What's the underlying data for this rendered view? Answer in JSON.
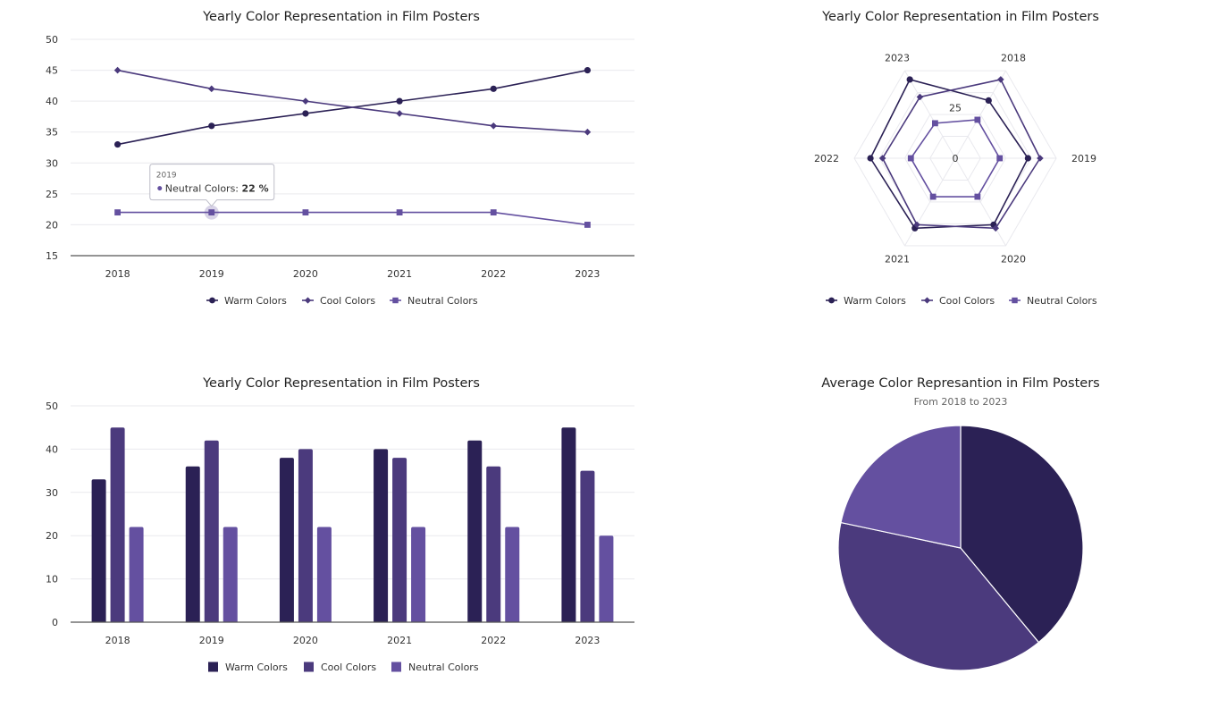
{
  "colors": {
    "warm": "#2b2155",
    "cool": "#4b3a7d",
    "neutral": "#6450a0",
    "grid": "#e9e9ee",
    "axis": "#555555",
    "text": "#222222",
    "tick": "#333333",
    "subtitle": "#666666"
  },
  "chart_data": [
    {
      "type": "line",
      "title": "Yearly Color Representation in Film Posters",
      "categories": [
        "2018",
        "2019",
        "2020",
        "2021",
        "2022",
        "2023"
      ],
      "ylim": [
        15,
        50
      ],
      "yticks": [
        "15",
        "20",
        "25",
        "30",
        "35",
        "40",
        "45",
        "50"
      ],
      "grid": true,
      "legend": "bottom",
      "series": [
        {
          "name": "Warm Colors",
          "values": [
            33,
            36,
            38,
            40,
            42,
            45
          ],
          "marker": "circle"
        },
        {
          "name": "Cool Colors",
          "values": [
            45,
            42,
            40,
            38,
            36,
            35
          ],
          "marker": "diamond"
        },
        {
          "name": "Neutral Colors",
          "values": [
            22,
            22,
            22,
            22,
            22,
            20
          ],
          "marker": "square"
        }
      ],
      "tooltip": {
        "category": "2019",
        "series": "Neutral Colors",
        "label": "Neutral Colors: ",
        "value": "22 %"
      }
    },
    {
      "type": "radar",
      "title": "Yearly Color Representation in Film Posters",
      "categories": [
        "2018",
        "2019",
        "2020",
        "2021",
        "2022",
        "2023"
      ],
      "rticks": [
        "0",
        "25"
      ],
      "rmax": 50,
      "legend": "bottom",
      "series": [
        {
          "name": "Warm Colors",
          "values": [
            33,
            36,
            38,
            40,
            42,
            45
          ],
          "marker": "circle"
        },
        {
          "name": "Cool Colors",
          "values": [
            45,
            42,
            40,
            38,
            36,
            35
          ],
          "marker": "diamond"
        },
        {
          "name": "Neutral Colors",
          "values": [
            22,
            22,
            22,
            22,
            22,
            20
          ],
          "marker": "square"
        }
      ]
    },
    {
      "type": "bar",
      "title": "Yearly Color Representation in Film Posters",
      "categories": [
        "2018",
        "2019",
        "2020",
        "2021",
        "2022",
        "2023"
      ],
      "ylim": [
        0,
        50
      ],
      "yticks": [
        "0",
        "10",
        "20",
        "30",
        "40",
        "50"
      ],
      "grid": true,
      "legend": "bottom",
      "series": [
        {
          "name": "Warm Colors",
          "values": [
            33,
            36,
            38,
            40,
            42,
            45
          ]
        },
        {
          "name": "Cool Colors",
          "values": [
            45,
            42,
            40,
            38,
            36,
            35
          ]
        },
        {
          "name": "Neutral Colors",
          "values": [
            22,
            22,
            22,
            22,
            22,
            20
          ]
        }
      ]
    },
    {
      "type": "pie",
      "title": "Average Color Represantion in Film Posters",
      "subtitle": "From 2018 to 2023",
      "slices": [
        {
          "name": "Warm Colors",
          "value": 39
        },
        {
          "name": "Cool Colors",
          "value": 39.33
        },
        {
          "name": "Neutral Colors",
          "value": 21.67
        }
      ]
    }
  ]
}
